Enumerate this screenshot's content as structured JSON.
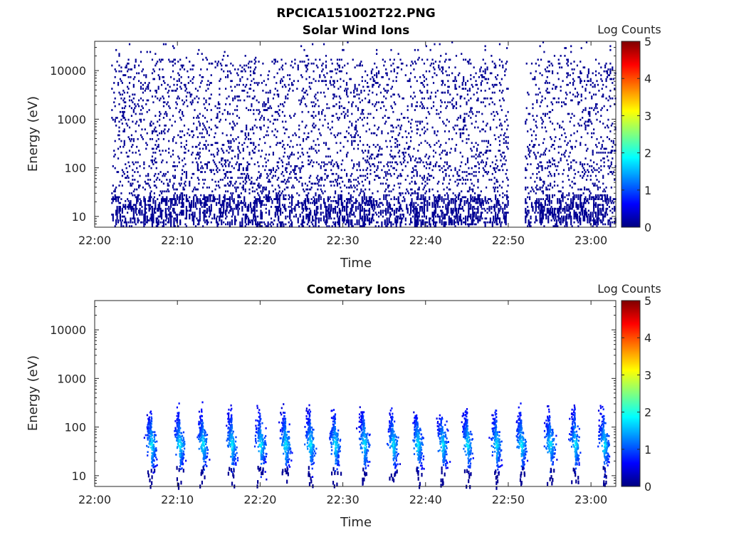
{
  "figure_title": "RPCICA151002T22.PNG",
  "chart_data": [
    {
      "type": "heatmap",
      "title": "Solar Wind Ions",
      "xlabel": "Time",
      "ylabel": "Energy (eV)",
      "x_tick_labels": [
        "22:00",
        "22:10",
        "22:20",
        "22:30",
        "22:40",
        "22:50",
        "23:00"
      ],
      "x_range": [
        "22:00",
        "23:03"
      ],
      "y_scale": "log",
      "y_tick_labels": [
        "10",
        "100",
        "1000",
        "10000"
      ],
      "y_range": [
        6,
        40000
      ],
      "data_time_range": [
        "22:02",
        "23:03"
      ],
      "data_gap": [
        "22:50",
        "22:52"
      ],
      "colorbar": {
        "label": "Log Counts",
        "tick_labels": [
          "0",
          "1",
          "2",
          "3",
          "4",
          "5"
        ],
        "range": [
          0,
          5
        ],
        "colormap": "jet"
      },
      "description_values": {
        "typical_log_counts": 0.1,
        "energy_band_dense": [
          6,
          20000
        ]
      }
    },
    {
      "type": "heatmap",
      "title": "Cometary Ions",
      "xlabel": "Time",
      "ylabel": "Energy (eV)",
      "x_tick_labels": [
        "22:00",
        "22:10",
        "22:20",
        "22:30",
        "22:40",
        "22:50",
        "23:00"
      ],
      "x_range": [
        "22:00",
        "23:03"
      ],
      "y_scale": "log",
      "y_tick_labels": [
        "10",
        "100",
        "1000",
        "10000"
      ],
      "y_range": [
        6,
        40000
      ],
      "colorbar": {
        "label": "Log Counts",
        "tick_labels": [
          "0",
          "1",
          "2",
          "3",
          "4",
          "5"
        ],
        "range": [
          0,
          5
        ],
        "colormap": "jet"
      },
      "bursts_minutes_after_2200": [
        6.8,
        10.2,
        13.0,
        16.5,
        20.0,
        23.0,
        26.0,
        29.0,
        32.5,
        36.0,
        39.0,
        42.0,
        45.0,
        48.5,
        51.5,
        55.0,
        58.0,
        61.5
      ],
      "peak_log_counts": 1.8,
      "peak_energy_ev": 45
    }
  ]
}
